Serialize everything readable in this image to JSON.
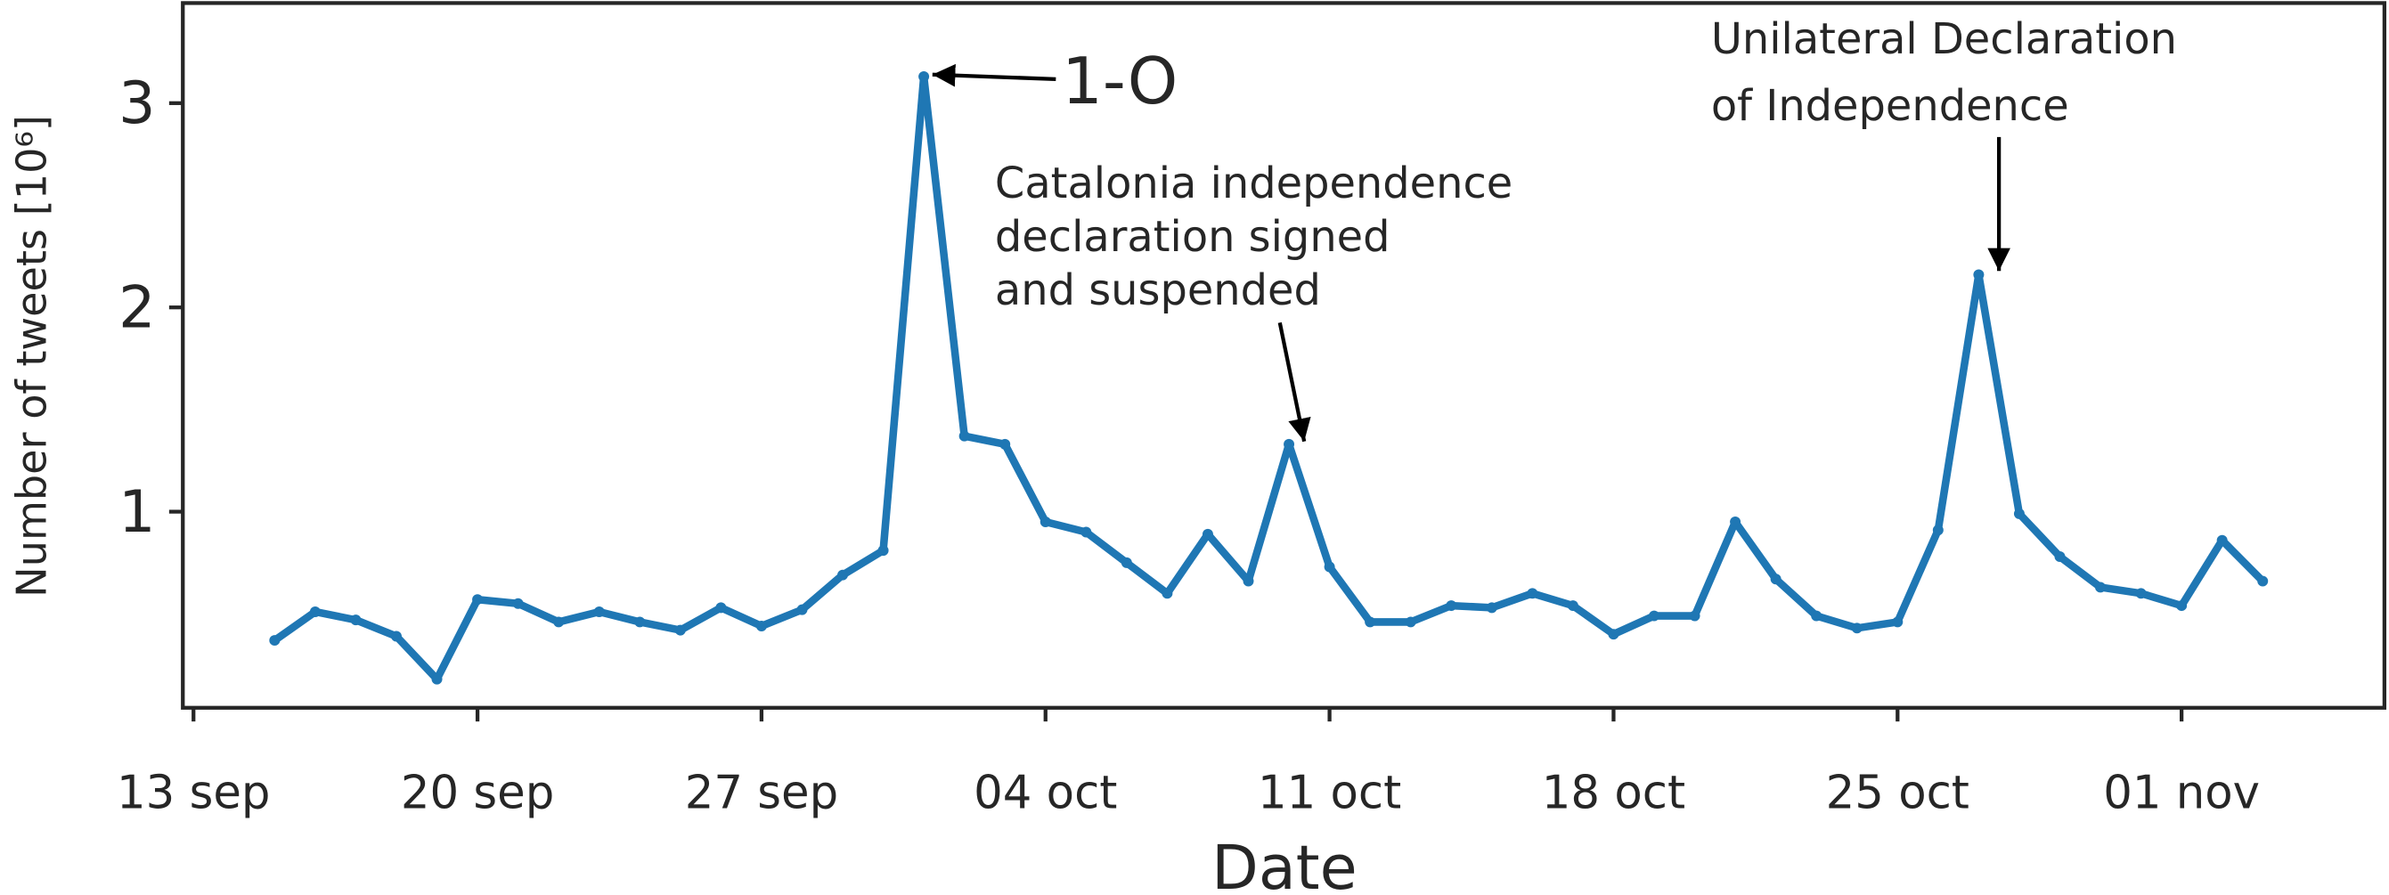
{
  "chart_data": {
    "type": "line",
    "x_label": "Date",
    "y_label": "Number of tweets [10⁶]",
    "x": [
      "15 sep",
      "16 sep",
      "17 sep",
      "18 sep",
      "19 sep",
      "20 sep",
      "21 sep",
      "22 sep",
      "23 sep",
      "24 sep",
      "25 sep",
      "26 sep",
      "27 sep",
      "28 sep",
      "29 sep",
      "30 sep",
      "01 oct",
      "02 oct",
      "03 oct",
      "04 oct",
      "05 oct",
      "06 oct",
      "07 oct",
      "08 oct",
      "09 oct",
      "10 oct",
      "11 oct",
      "12 oct",
      "13 oct",
      "14 oct",
      "15 oct",
      "16 oct",
      "17 oct",
      "18 oct",
      "19 oct",
      "20 oct",
      "21 oct",
      "22 oct",
      "23 oct",
      "24 oct",
      "25 oct",
      "26 oct",
      "27 oct",
      "28 oct",
      "29 oct",
      "30 oct",
      "31 oct",
      "01 nov",
      "02 nov",
      "03 nov"
    ],
    "values": [
      0.37,
      0.51,
      0.47,
      0.39,
      0.18,
      0.57,
      0.55,
      0.46,
      0.51,
      0.46,
      0.42,
      0.53,
      0.44,
      0.52,
      0.69,
      0.81,
      3.13,
      1.37,
      1.33,
      0.95,
      0.9,
      0.75,
      0.6,
      0.89,
      0.66,
      1.33,
      0.73,
      0.46,
      0.46,
      0.54,
      0.53,
      0.6,
      0.54,
      0.4,
      0.49,
      0.49,
      0.95,
      0.67,
      0.49,
      0.43,
      0.46,
      0.91,
      2.16,
      0.99,
      0.78,
      0.63,
      0.6,
      0.54,
      0.86,
      0.66
    ],
    "color": "#1f77b4",
    "xlim": [
      "13 sep",
      "06 nov"
    ],
    "xticks": [
      "13 sep",
      "20 sep",
      "27 sep",
      "04 oct",
      "11 oct",
      "18 oct",
      "25 oct",
      "01 nov"
    ],
    "ylim": [
      0.04,
      3.49
    ],
    "yticks": [
      1,
      2,
      3
    ],
    "annotations": [
      {
        "text": [
          "1-O"
        ]
      },
      {
        "text": [
          "Catalonia independence",
          "declaration signed",
          "and suspended"
        ]
      },
      {
        "text": [
          "Unilateral Declaration",
          "of Independence"
        ]
      }
    ]
  }
}
